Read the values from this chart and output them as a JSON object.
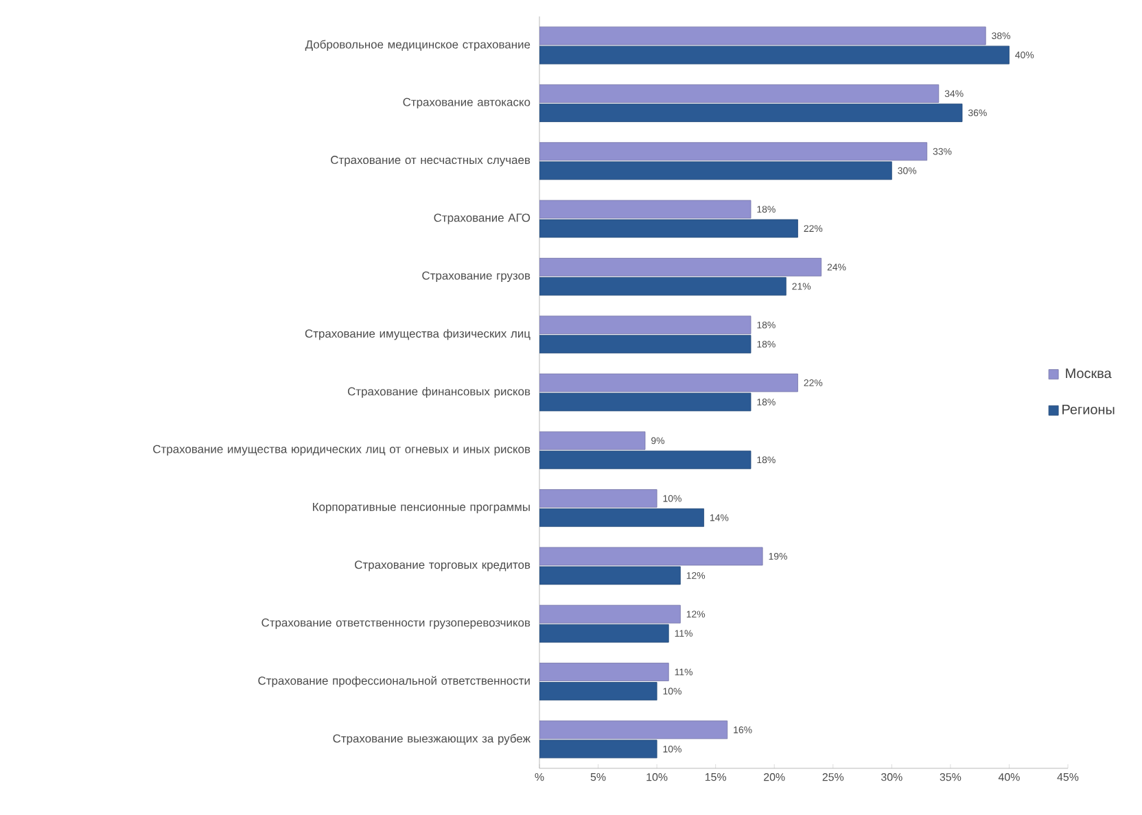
{
  "chart_data": {
    "type": "bar",
    "orientation": "horizontal",
    "legend": "right",
    "grid": false,
    "categories": [
      "Добровольное медицинское страхование",
      "Страхование автокаско",
      "Страхование от несчастных случаев",
      "Страхование АГО",
      "Страхование грузов",
      "Страхование имущества физических лиц",
      "Страхование финансовых рисков",
      "Страхование имущества юридических лиц от огневых и иных рисков",
      "Корпоративные пенсионные программы",
      "Страхование торговых кредитов",
      "Страхование ответственности грузоперевозчиков",
      "Страхование профессиональной ответственности",
      "Страхование выезжающих за рубеж"
    ],
    "series": [
      {
        "name": "Москва",
        "color": "#9191d0",
        "values": [
          38,
          34,
          33,
          18,
          24,
          18,
          22,
          9,
          10,
          19,
          12,
          11,
          16
        ],
        "value_labels": [
          "38%",
          "34%",
          "33%",
          "18%",
          "24%",
          "18%",
          "22%",
          "9%",
          "10%",
          "19%",
          "12%",
          "11%",
          "16%"
        ]
      },
      {
        "name": "Регионы",
        "color": "#2b5a94",
        "values": [
          40,
          36,
          30,
          22,
          21,
          18,
          18,
          18,
          14,
          12,
          11,
          10,
          10
        ],
        "value_labels": [
          "40%",
          "36%",
          "30%",
          "22%",
          "21%",
          "18%",
          "18%",
          "18%",
          "14%",
          "12%",
          "11%",
          "10%",
          "10%"
        ]
      }
    ],
    "xlim": [
      0,
      45
    ],
    "xticks": [
      {
        "value": 0,
        "label": "%"
      },
      {
        "value": 5,
        "label": "5%"
      },
      {
        "value": 10,
        "label": "10%"
      },
      {
        "value": 15,
        "label": "15%"
      },
      {
        "value": 20,
        "label": "20%"
      },
      {
        "value": 25,
        "label": "25%"
      },
      {
        "value": 30,
        "label": "30%"
      },
      {
        "value": 35,
        "label": "35%"
      },
      {
        "value": 40,
        "label": "40%"
      },
      {
        "value": 45,
        "label": "45%"
      }
    ]
  }
}
